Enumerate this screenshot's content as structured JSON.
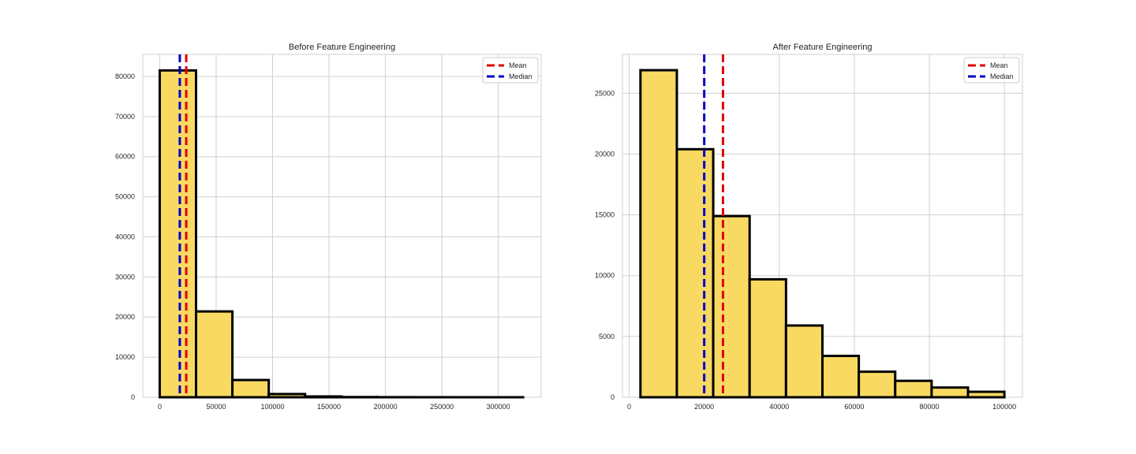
{
  "figure": {
    "background": "#ffffff",
    "bar_fill": "#f8d962",
    "bar_edge": "#000000",
    "grid_color": "#d0d0d0",
    "mean_color": "#e00000",
    "median_color": "#0000c8"
  },
  "chart_data": [
    {
      "type": "bar",
      "subtype": "histogram",
      "title": "Before Feature Engineering",
      "xlabel": "",
      "ylabel": "",
      "bin_edges": [
        0,
        32200,
        64400,
        96600,
        128800,
        161000,
        193200,
        225400,
        257600,
        289800,
        322000
      ],
      "values": [
        81500,
        21400,
        4300,
        800,
        200,
        50,
        20,
        10,
        5,
        3
      ],
      "xlim": [
        -15000,
        338000
      ],
      "ylim": [
        0,
        85500
      ],
      "xticks": [
        0,
        50000,
        100000,
        150000,
        200000,
        250000,
        300000
      ],
      "xtick_labels": [
        "0",
        "50000",
        "100000",
        "150000",
        "200000",
        "250000",
        "300000"
      ],
      "yticks": [
        0,
        10000,
        20000,
        30000,
        40000,
        50000,
        60000,
        70000,
        80000
      ],
      "ytick_labels": [
        "0",
        "10000",
        "20000",
        "30000",
        "40000",
        "50000",
        "60000",
        "70000",
        "80000"
      ],
      "grid": true,
      "lines": [
        {
          "name": "Mean",
          "x": 23500,
          "color": "#e00000",
          "style": "dashed"
        },
        {
          "name": "Median",
          "x": 17800,
          "color": "#0000c8",
          "style": "dashed"
        }
      ],
      "legend": {
        "position": "upper right",
        "entries": [
          "Mean",
          "Median"
        ]
      }
    },
    {
      "type": "bar",
      "subtype": "histogram",
      "title": "After Feature Engineering",
      "xlabel": "",
      "ylabel": "",
      "bin_edges": [
        3000,
        12700,
        22400,
        32100,
        41800,
        51500,
        61200,
        70900,
        80600,
        90300,
        100000
      ],
      "values": [
        26900,
        20400,
        14900,
        9700,
        5900,
        3400,
        2100,
        1350,
        800,
        450
      ],
      "xlim": [
        -1800,
        104800
      ],
      "ylim": [
        0,
        28200
      ],
      "xticks": [
        0,
        20000,
        40000,
        60000,
        80000,
        100000
      ],
      "xtick_labels": [
        "0",
        "20000",
        "40000",
        "60000",
        "80000",
        "100000"
      ],
      "yticks": [
        0,
        5000,
        10000,
        15000,
        20000,
        25000
      ],
      "ytick_labels": [
        "0",
        "5000",
        "10000",
        "15000",
        "20000",
        "25000"
      ],
      "grid": true,
      "lines": [
        {
          "name": "Mean",
          "x": 25000,
          "color": "#e00000",
          "style": "dashed"
        },
        {
          "name": "Median",
          "x": 20000,
          "color": "#0000c8",
          "style": "dashed"
        }
      ],
      "legend": {
        "position": "upper right",
        "entries": [
          "Mean",
          "Median"
        ]
      }
    }
  ]
}
